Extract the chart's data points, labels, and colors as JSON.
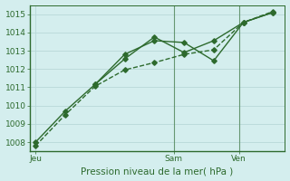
{
  "line1": {
    "x": [
      0,
      1,
      2,
      3,
      4,
      5,
      6,
      7,
      8
    ],
    "y": [
      1008.0,
      1009.7,
      1011.15,
      1012.55,
      1013.75,
      1012.9,
      1013.55,
      1014.55,
      1015.1
    ]
  },
  "line2": {
    "x": [
      2,
      3,
      4,
      5,
      6,
      7,
      8
    ],
    "y": [
      1011.15,
      1012.8,
      1013.55,
      1013.45,
      1012.45,
      1014.55,
      1015.1
    ]
  },
  "line3": {
    "x": [
      0,
      1,
      2,
      3,
      4,
      5,
      6,
      7,
      8
    ],
    "y": [
      1007.8,
      1009.5,
      1011.05,
      1011.95,
      1012.35,
      1012.8,
      1013.05,
      1014.55,
      1015.15
    ]
  },
  "color": "#2d6a2d",
  "bg_color": "#d4eeee",
  "grid_color": "#b8d8d8",
  "ylim": [
    1007.5,
    1015.5
  ],
  "yticks": [
    1008,
    1009,
    1010,
    1011,
    1012,
    1013,
    1014,
    1015
  ],
  "xlim": [
    -0.2,
    8.4
  ],
  "xtick_positions": [
    0,
    4.65,
    6.85
  ],
  "xtick_labels": [
    "Jeu",
    "Sam",
    "Ven"
  ],
  "vlines": [
    4.65,
    6.85
  ],
  "xlabel": "Pression niveau de la mer( hPa )",
  "xlabel_fontsize": 7.5,
  "tick_fontsize": 6.5,
  "line_width": 1.0,
  "marker": "D",
  "marker_size": 2.8
}
